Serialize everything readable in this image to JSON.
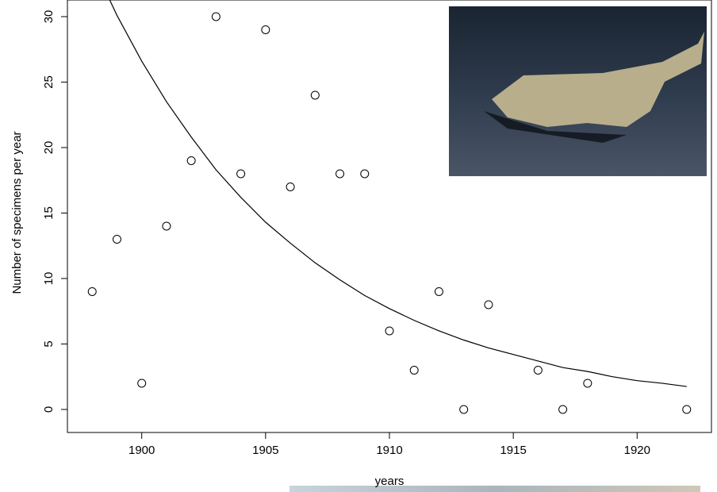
{
  "chart_data": {
    "type": "scatter",
    "xlabel": "years",
    "ylabel": "Number of specimens per year",
    "xlim": [
      1897.0,
      1923.0
    ],
    "ylim": [
      -1.76,
      31.27
    ],
    "xticks": [
      1900,
      1905,
      1910,
      1915,
      1920
    ],
    "yticks": [
      0,
      5,
      10,
      15,
      20,
      25,
      30
    ],
    "series": [
      {
        "type": "scatter",
        "color": "#000000",
        "x": [
          1898,
          1899,
          1900,
          1901,
          1902,
          1903,
          1904,
          1905,
          1906,
          1907,
          1908,
          1909,
          1910,
          1911,
          1912,
          1913,
          1914,
          1916,
          1917,
          1918,
          1922
        ],
        "values": [
          9,
          13,
          2,
          14,
          19,
          30,
          18,
          29,
          17,
          24,
          18,
          18,
          6,
          3,
          9,
          0,
          8,
          3,
          0,
          2,
          0
        ]
      },
      {
        "type": "line",
        "color": "#000000",
        "x": [
          1898,
          1899,
          1900,
          1901,
          1902,
          1903,
          1904,
          1905,
          1906,
          1907,
          1908,
          1909,
          1910,
          1911,
          1912,
          1913,
          1914,
          1915,
          1916,
          1917,
          1918,
          1919,
          1920,
          1921,
          1922
        ],
        "values": [
          34.1,
          30.1,
          26.6,
          23.5,
          20.8,
          18.3,
          16.2,
          14.3,
          12.7,
          11.2,
          9.9,
          8.7,
          7.7,
          6.8,
          6.0,
          5.3,
          4.7,
          4.2,
          3.7,
          3.2,
          2.9,
          2.5,
          2.2,
          2.0,
          1.75
        ]
      }
    ]
  }
}
